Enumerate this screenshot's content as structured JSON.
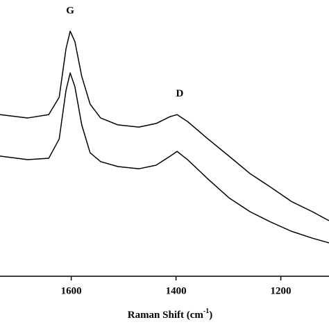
{
  "chart_data": {
    "type": "line",
    "xlabel": "Raman Shift (cm",
    "xlabel_sup": "-1",
    "xlabel_end": ")",
    "x": [
      1736,
      1683,
      1643,
      1623,
      1610,
      1602,
      1593,
      1580,
      1564,
      1544,
      1511,
      1471,
      1438,
      1411,
      1398,
      1378,
      1339,
      1299,
      1259,
      1219,
      1180,
      1140,
      1108
    ],
    "series": [
      {
        "color": "#000000",
        "values": [
          58.5,
          57.3,
          58.5,
          64.8,
          82.4,
          88.7,
          84.9,
          72.4,
          62.3,
          57.3,
          54.8,
          54.0,
          55.3,
          57.8,
          58.5,
          56.0,
          49.7,
          43.5,
          37.2,
          32.2,
          27.1,
          23.4,
          20.1
        ]
      },
      {
        "color": "#000000",
        "values": [
          43.5,
          42.2,
          42.7,
          49.7,
          67.3,
          73.6,
          68.6,
          54.8,
          44.7,
          41.5,
          39.7,
          38.9,
          40.2,
          43.5,
          45.2,
          42.2,
          35.2,
          28.4,
          23.4,
          19.6,
          16.3,
          13.8,
          12.1
        ]
      }
    ],
    "annotations": [
      {
        "text": "G",
        "x": 1602,
        "y": 96
      },
      {
        "text": "D",
        "x": 1393,
        "y": 66
      }
    ],
    "xlim": [
      1736,
      1108
    ],
    "ylim": [
      0,
      100
    ],
    "xticks": [
      1600,
      1400,
      1200
    ]
  }
}
